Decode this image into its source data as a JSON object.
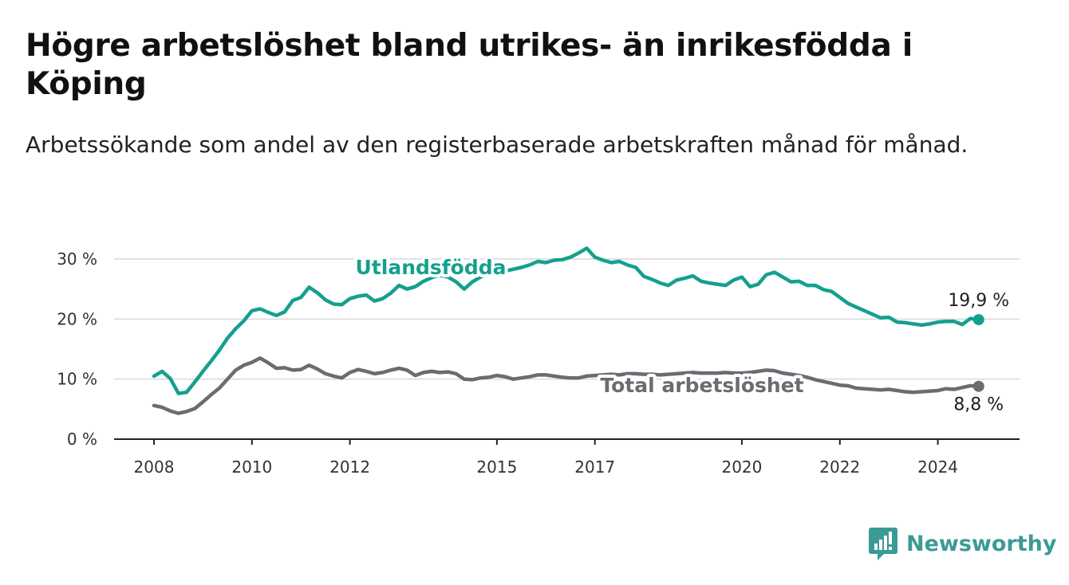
{
  "header": {
    "title": "Högre arbetslöshet bland utrikes- än inrikesfödda i Köping",
    "subtitle": "Arbetssökande som andel av den registerbaserade arbetskraften månad för månad."
  },
  "brand": {
    "name": "Newsworthy",
    "icon": "newsworthy-logo-icon",
    "color": "#3b9a95"
  },
  "chart_data": {
    "type": "line",
    "title": "Högre arbetslöshet bland utrikes- än inrikesfödda i Köping",
    "subtitle": "Arbetssökande som andel av den registerbaserade arbetskraften månad för månad.",
    "xlabel": "",
    "ylabel": "",
    "ylim": [
      0,
      30
    ],
    "xlim": [
      "2008-01",
      "2025-01"
    ],
    "y_ticks": [
      0,
      10,
      20,
      30
    ],
    "y_tick_labels": [
      "0 %",
      "10 %",
      "20 %",
      "30 %"
    ],
    "x_ticks": [
      "2008-01",
      "2010-01",
      "2012-01",
      "2015-01",
      "2017-01",
      "2020-01",
      "2022-01",
      "2024-01"
    ],
    "x_tick_labels": [
      "2008",
      "2010",
      "2012",
      "2015",
      "2017",
      "2020",
      "2022",
      "2024"
    ],
    "grid": "horizontal",
    "legend": "inline labels",
    "series": [
      {
        "name": "Utlandsfödda",
        "color": "#14a08e",
        "end_label": "19,9 %",
        "points": [
          [
            "2008-01",
            10.5
          ],
          [
            "2008-03",
            11.3
          ],
          [
            "2008-05",
            10.1
          ],
          [
            "2008-07",
            7.6
          ],
          [
            "2008-09",
            7.8
          ],
          [
            "2008-11",
            9.5
          ],
          [
            "2009-01",
            11.3
          ],
          [
            "2009-03",
            13.0
          ],
          [
            "2009-05",
            14.8
          ],
          [
            "2009-07",
            16.8
          ],
          [
            "2009-09",
            18.4
          ],
          [
            "2009-11",
            19.7
          ],
          [
            "2010-01",
            21.4
          ],
          [
            "2010-03",
            21.7
          ],
          [
            "2010-05",
            21.1
          ],
          [
            "2010-07",
            20.6
          ],
          [
            "2010-09",
            21.2
          ],
          [
            "2010-11",
            23.1
          ],
          [
            "2011-01",
            23.6
          ],
          [
            "2011-03",
            25.3
          ],
          [
            "2011-05",
            24.4
          ],
          [
            "2011-07",
            23.2
          ],
          [
            "2011-09",
            22.5
          ],
          [
            "2011-11",
            22.4
          ],
          [
            "2012-01",
            23.4
          ],
          [
            "2012-03",
            23.8
          ],
          [
            "2012-05",
            24.0
          ],
          [
            "2012-07",
            23.0
          ],
          [
            "2012-09",
            23.4
          ],
          [
            "2012-11",
            24.3
          ],
          [
            "2013-01",
            25.6
          ],
          [
            "2013-03",
            25.0
          ],
          [
            "2013-05",
            25.4
          ],
          [
            "2013-07",
            26.3
          ],
          [
            "2013-09",
            26.9
          ],
          [
            "2013-11",
            27.3
          ],
          [
            "2014-01",
            27.0
          ],
          [
            "2014-03",
            26.2
          ],
          [
            "2014-05",
            25.0
          ],
          [
            "2014-07",
            26.2
          ],
          [
            "2014-09",
            27.0
          ],
          [
            "2014-11",
            27.6
          ],
          [
            "2015-01",
            27.8
          ],
          [
            "2015-03",
            28.0
          ],
          [
            "2015-05",
            28.3
          ],
          [
            "2015-07",
            28.6
          ],
          [
            "2015-09",
            29.0
          ],
          [
            "2015-11",
            29.6
          ],
          [
            "2016-01",
            29.4
          ],
          [
            "2016-03",
            29.8
          ],
          [
            "2016-05",
            29.9
          ],
          [
            "2016-07",
            30.3
          ],
          [
            "2016-09",
            31.0
          ],
          [
            "2016-11",
            31.8
          ],
          [
            "2017-01",
            30.3
          ],
          [
            "2017-03",
            29.8
          ],
          [
            "2017-05",
            29.4
          ],
          [
            "2017-07",
            29.6
          ],
          [
            "2017-09",
            29.0
          ],
          [
            "2017-11",
            28.6
          ],
          [
            "2018-01",
            27.1
          ],
          [
            "2018-03",
            26.6
          ],
          [
            "2018-05",
            26.0
          ],
          [
            "2018-07",
            25.6
          ],
          [
            "2018-09",
            26.5
          ],
          [
            "2018-11",
            26.8
          ],
          [
            "2019-01",
            27.2
          ],
          [
            "2019-03",
            26.3
          ],
          [
            "2019-05",
            26.0
          ],
          [
            "2019-07",
            25.8
          ],
          [
            "2019-09",
            25.6
          ],
          [
            "2019-11",
            26.5
          ],
          [
            "2020-01",
            27.0
          ],
          [
            "2020-03",
            25.4
          ],
          [
            "2020-05",
            25.8
          ],
          [
            "2020-07",
            27.4
          ],
          [
            "2020-09",
            27.8
          ],
          [
            "2020-11",
            27.0
          ],
          [
            "2021-01",
            26.2
          ],
          [
            "2021-03",
            26.3
          ],
          [
            "2021-05",
            25.6
          ],
          [
            "2021-07",
            25.6
          ],
          [
            "2021-09",
            24.9
          ],
          [
            "2021-11",
            24.6
          ],
          [
            "2022-01",
            23.6
          ],
          [
            "2022-03",
            22.6
          ],
          [
            "2022-05",
            22.0
          ],
          [
            "2022-07",
            21.4
          ],
          [
            "2022-09",
            20.8
          ],
          [
            "2022-11",
            20.2
          ],
          [
            "2023-01",
            20.3
          ],
          [
            "2023-03",
            19.5
          ],
          [
            "2023-05",
            19.4
          ],
          [
            "2023-07",
            19.2
          ],
          [
            "2023-09",
            19.0
          ],
          [
            "2023-11",
            19.2
          ],
          [
            "2024-01",
            19.5
          ],
          [
            "2024-03",
            19.6
          ],
          [
            "2024-05",
            19.6
          ],
          [
            "2024-07",
            19.1
          ],
          [
            "2024-09",
            20.1
          ],
          [
            "2024-11",
            19.9
          ]
        ]
      },
      {
        "name": "Total arbetslöshet",
        "color": "#6b6b72",
        "end_label": "8,8 %",
        "points": [
          [
            "2008-01",
            5.6
          ],
          [
            "2008-03",
            5.3
          ],
          [
            "2008-05",
            4.7
          ],
          [
            "2008-07",
            4.3
          ],
          [
            "2008-09",
            4.6
          ],
          [
            "2008-11",
            5.1
          ],
          [
            "2009-01",
            6.2
          ],
          [
            "2009-03",
            7.4
          ],
          [
            "2009-05",
            8.5
          ],
          [
            "2009-07",
            10.0
          ],
          [
            "2009-09",
            11.5
          ],
          [
            "2009-11",
            12.3
          ],
          [
            "2010-01",
            12.8
          ],
          [
            "2010-03",
            13.5
          ],
          [
            "2010-05",
            12.7
          ],
          [
            "2010-07",
            11.8
          ],
          [
            "2010-09",
            11.9
          ],
          [
            "2010-11",
            11.5
          ],
          [
            "2011-01",
            11.6
          ],
          [
            "2011-03",
            12.3
          ],
          [
            "2011-05",
            11.7
          ],
          [
            "2011-07",
            10.9
          ],
          [
            "2011-09",
            10.5
          ],
          [
            "2011-11",
            10.2
          ],
          [
            "2012-01",
            11.1
          ],
          [
            "2012-03",
            11.6
          ],
          [
            "2012-05",
            11.3
          ],
          [
            "2012-07",
            10.9
          ],
          [
            "2012-09",
            11.1
          ],
          [
            "2012-11",
            11.5
          ],
          [
            "2013-01",
            11.8
          ],
          [
            "2013-03",
            11.5
          ],
          [
            "2013-05",
            10.6
          ],
          [
            "2013-07",
            11.1
          ],
          [
            "2013-09",
            11.3
          ],
          [
            "2013-11",
            11.1
          ],
          [
            "2014-01",
            11.2
          ],
          [
            "2014-03",
            10.9
          ],
          [
            "2014-05",
            10.0
          ],
          [
            "2014-07",
            9.9
          ],
          [
            "2014-09",
            10.2
          ],
          [
            "2014-11",
            10.3
          ],
          [
            "2015-01",
            10.6
          ],
          [
            "2015-03",
            10.4
          ],
          [
            "2015-05",
            10.0
          ],
          [
            "2015-07",
            10.2
          ],
          [
            "2015-09",
            10.4
          ],
          [
            "2015-11",
            10.7
          ],
          [
            "2016-01",
            10.7
          ],
          [
            "2016-03",
            10.5
          ],
          [
            "2016-05",
            10.3
          ],
          [
            "2016-07",
            10.2
          ],
          [
            "2016-09",
            10.2
          ],
          [
            "2016-11",
            10.5
          ],
          [
            "2017-01",
            10.6
          ],
          [
            "2017-03",
            10.7
          ],
          [
            "2017-05",
            10.8
          ],
          [
            "2017-07",
            10.7
          ],
          [
            "2017-09",
            10.9
          ],
          [
            "2017-11",
            10.9
          ],
          [
            "2018-01",
            10.8
          ],
          [
            "2018-03",
            10.8
          ],
          [
            "2018-05",
            10.7
          ],
          [
            "2018-07",
            10.8
          ],
          [
            "2018-09",
            10.9
          ],
          [
            "2018-11",
            11.0
          ],
          [
            "2019-01",
            11.1
          ],
          [
            "2019-03",
            11.0
          ],
          [
            "2019-05",
            11.0
          ],
          [
            "2019-07",
            11.0
          ],
          [
            "2019-09",
            11.1
          ],
          [
            "2019-11",
            11.0
          ],
          [
            "2020-01",
            11.0
          ],
          [
            "2020-03",
            11.1
          ],
          [
            "2020-05",
            11.3
          ],
          [
            "2020-07",
            11.5
          ],
          [
            "2020-09",
            11.4
          ],
          [
            "2020-11",
            11.0
          ],
          [
            "2021-01",
            10.8
          ],
          [
            "2021-03",
            10.6
          ],
          [
            "2021-05",
            10.3
          ],
          [
            "2021-07",
            9.9
          ],
          [
            "2021-09",
            9.6
          ],
          [
            "2021-11",
            9.3
          ],
          [
            "2022-01",
            9.0
          ],
          [
            "2022-03",
            8.9
          ],
          [
            "2022-05",
            8.5
          ],
          [
            "2022-07",
            8.4
          ],
          [
            "2022-09",
            8.3
          ],
          [
            "2022-11",
            8.2
          ],
          [
            "2023-01",
            8.3
          ],
          [
            "2023-03",
            8.1
          ],
          [
            "2023-05",
            7.9
          ],
          [
            "2023-07",
            7.8
          ],
          [
            "2023-09",
            7.9
          ],
          [
            "2023-11",
            8.0
          ],
          [
            "2024-01",
            8.1
          ],
          [
            "2024-03",
            8.4
          ],
          [
            "2024-05",
            8.3
          ],
          [
            "2024-07",
            8.6
          ],
          [
            "2024-09",
            8.9
          ],
          [
            "2024-11",
            8.8
          ]
        ]
      }
    ]
  }
}
